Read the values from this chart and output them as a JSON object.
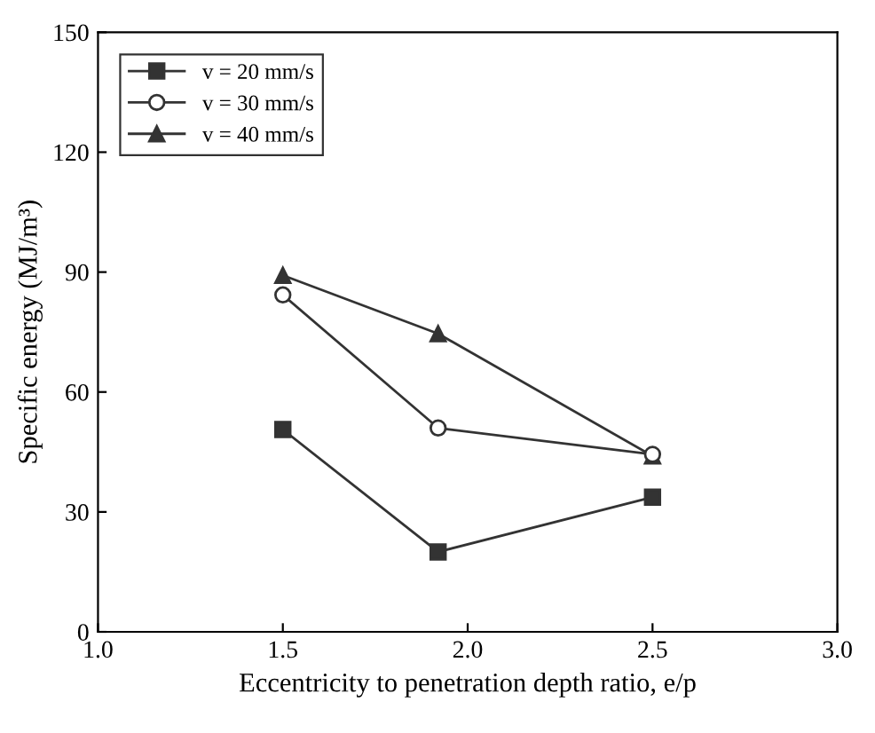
{
  "chart_data": {
    "type": "line",
    "xlabel": "Eccentricity to penetration depth ratio, e/p",
    "ylabel": "Specific energy (MJ/m³)",
    "xlim": [
      1.0,
      3.0
    ],
    "xticks": [
      {
        "value": 1,
        "label": "1.0"
      },
      1.5,
      {
        "value": 2,
        "label": "2.0"
      },
      2.5,
      {
        "value": 3,
        "label": "3.0"
      }
    ],
    "ylim": [
      0,
      150
    ],
    "yticks": [
      0,
      30,
      60,
      90,
      120,
      150
    ],
    "grid": false,
    "legend": "top left",
    "line_style": "solid",
    "series": [
      {
        "name": "v = 20 mm/s",
        "color": "#333333",
        "marker": "square",
        "x": [
          1.5,
          1.92,
          2.5
        ],
        "values": [
          50.6,
          20,
          33.7
        ]
      },
      {
        "name": "v = 30 mm/s",
        "color": "#333333",
        "marker": "circle",
        "x": [
          1.5,
          1.92,
          2.5
        ],
        "values": [
          84.3,
          51,
          44.4
        ]
      },
      {
        "name": "v = 40 mm/s",
        "color": "#333333",
        "marker": "triangle",
        "x": [
          1.5,
          1.92,
          2.5
        ],
        "values": [
          89.2,
          74.6,
          44
        ]
      }
    ]
  }
}
